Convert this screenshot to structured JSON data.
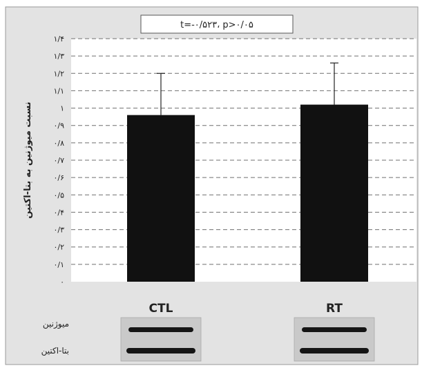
{
  "chart_data": {
    "type": "bar",
    "categories": [
      "CTL",
      "RT"
    ],
    "values": [
      0.96,
      1.02
    ],
    "error_upper": [
      1.2,
      1.26
    ],
    "annotation": "t=-۰/۵۲۳، p>۰/۰۵",
    "ylabel": "نسبت میوژنین به بتا-اکتین",
    "ylim": [
      0,
      1.4
    ],
    "yticks": [
      {
        "value": 0,
        "label": "۰"
      },
      {
        "value": 0.1,
        "label": "۰/۱"
      },
      {
        "value": 0.2,
        "label": "۰/۲"
      },
      {
        "value": 0.3,
        "label": "۰/۳"
      },
      {
        "value": 0.4,
        "label": "۰/۴"
      },
      {
        "value": 0.5,
        "label": "۰/۵"
      },
      {
        "value": 0.6,
        "label": "۰/۶"
      },
      {
        "value": 0.7,
        "label": "۰/۷"
      },
      {
        "value": 0.8,
        "label": "۰/۸"
      },
      {
        "value": 0.9,
        "label": "۰/۹"
      },
      {
        "value": 1.0,
        "label": "۱"
      },
      {
        "value": 1.1,
        "label": "۱/۱"
      },
      {
        "value": 1.2,
        "label": "۱/۲"
      },
      {
        "value": 1.3,
        "label": "۱/۳"
      },
      {
        "value": 1.4,
        "label": "۱/۴"
      }
    ],
    "grid": true
  },
  "blot": {
    "rows": [
      "میوژنین",
      "بتا-اکتین"
    ]
  },
  "colors": {
    "panel_bg": "#e3e3e3",
    "plot_bg": "#ffffff",
    "bar": "#111111",
    "band": "#141414",
    "blot_bg": "#c9c9c9"
  }
}
